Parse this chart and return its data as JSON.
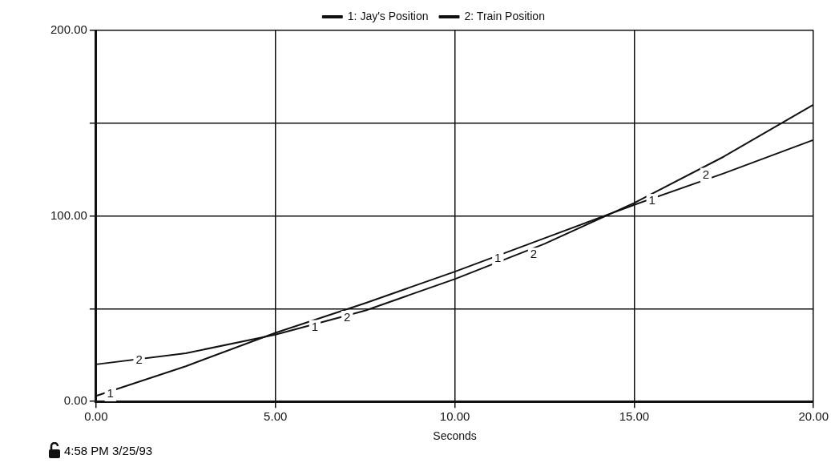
{
  "chart_data": {
    "type": "line",
    "xlabel": "Seconds",
    "x": [
      0,
      2.5,
      5,
      7.5,
      10,
      12.5,
      15,
      17.5,
      20
    ],
    "series": [
      {
        "name": "1: Jay's Position",
        "color": "#111111",
        "values": [
          3,
          19,
          37,
          53,
          70,
          88,
          106,
          123,
          141
        ]
      },
      {
        "name": "2: Train Position",
        "color": "#111111",
        "values": [
          20,
          26,
          36,
          49,
          66,
          85,
          107,
          132,
          160
        ]
      }
    ],
    "xlim": [
      0,
      20
    ],
    "xticks": [
      {
        "value": 0,
        "label": "0.00"
      },
      {
        "value": 5,
        "label": "5.00"
      },
      {
        "value": 10,
        "label": "10.00"
      },
      {
        "value": 15,
        "label": "15.00"
      },
      {
        "value": 20,
        "label": "20.00"
      }
    ],
    "ylim": [
      0,
      200
    ],
    "yticks": [
      {
        "value": 0,
        "label": "0.00"
      },
      {
        "value": 50,
        "label": null
      },
      {
        "value": 100,
        "label": "100.00"
      },
      {
        "value": 150,
        "label": null
      },
      {
        "value": 200,
        "label": "200.00"
      }
    ],
    "grid": true,
    "legend": "top",
    "marker": "none",
    "line_style": "solid",
    "annotations": [
      {
        "text": "1",
        "x": 0.4,
        "y": 4
      },
      {
        "text": "1",
        "x": 6.1,
        "y": 40
      },
      {
        "text": "1",
        "x": 11.2,
        "y": 77
      },
      {
        "text": "1",
        "x": 15.5,
        "y": 108
      },
      {
        "text": "2",
        "x": 1.2,
        "y": 22
      },
      {
        "text": "2",
        "x": 7.0,
        "y": 45
      },
      {
        "text": "2",
        "x": 12.2,
        "y": 79
      },
      {
        "text": "2",
        "x": 17.0,
        "y": 122
      },
      "4:58 PM  3/25/93"
    ]
  }
}
